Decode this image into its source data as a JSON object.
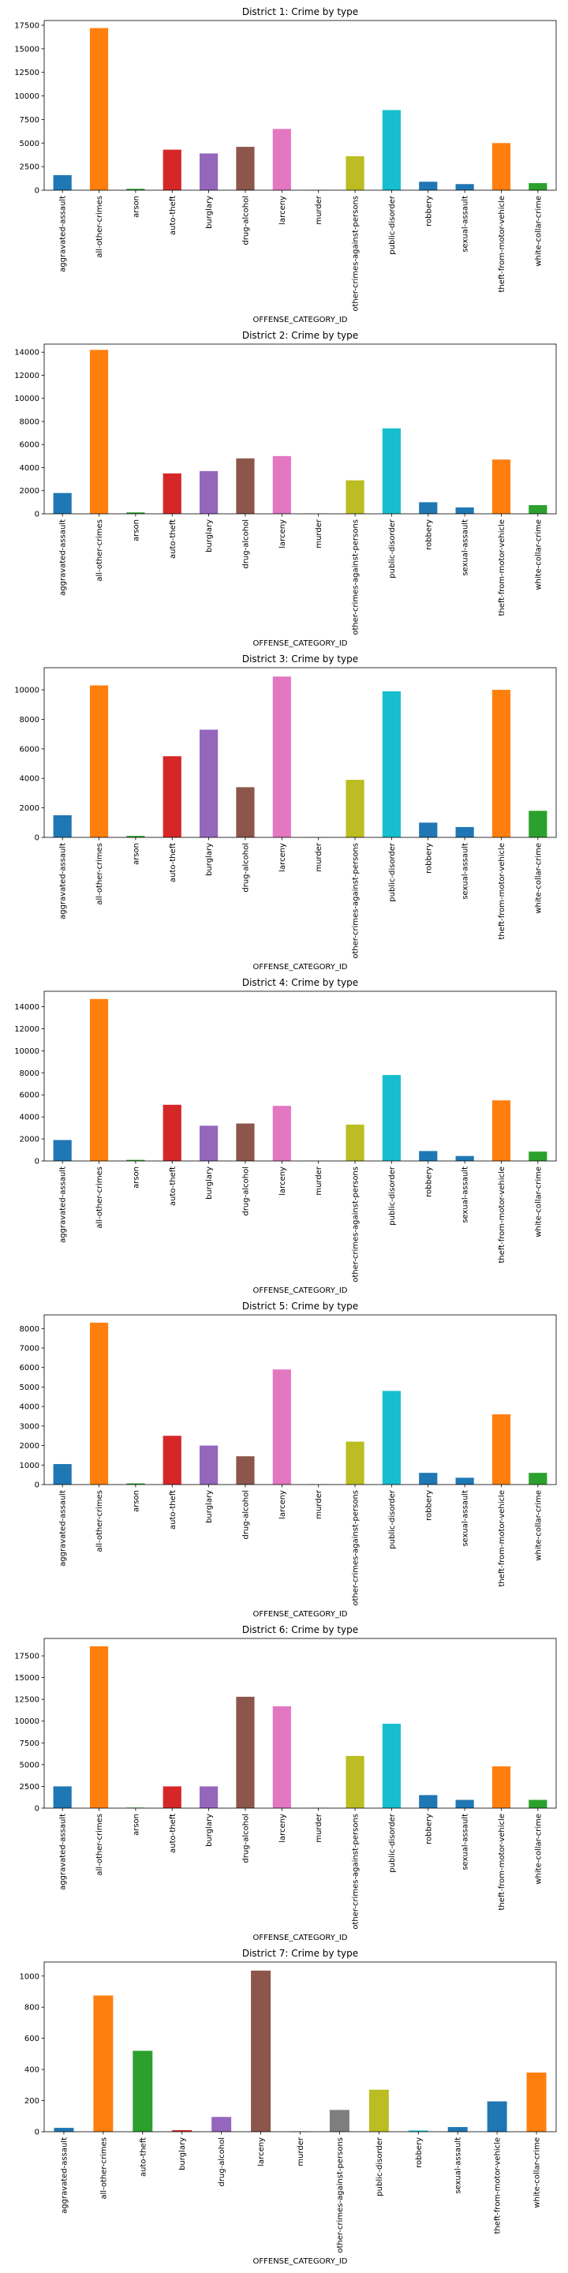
{
  "chart_data": [
    {
      "type": "bar",
      "title": "District 1: Crime by type",
      "xlabel": "OFFENSE_CATEGORY_ID",
      "ylim": [
        0,
        18000
      ],
      "yticks": [
        0,
        2500,
        5000,
        7500,
        10000,
        12500,
        15000,
        17500
      ],
      "categories": [
        "aggravated-assault",
        "all-other-crimes",
        "arson",
        "auto-theft",
        "burglary",
        "drug-alcohol",
        "larceny",
        "murder",
        "other-crimes-against-persons",
        "public-disorder",
        "robbery",
        "sexual-assault",
        "theft-from-motor-vehicle",
        "white-collar-crime"
      ],
      "values": [
        1600,
        17200,
        150,
        4300,
        3900,
        4600,
        6500,
        30,
        3600,
        8500,
        900,
        650,
        5000,
        750
      ],
      "colors": [
        "#1f77b4",
        "#ff7f0e",
        "#2ca02c",
        "#d62728",
        "#9467bd",
        "#8c564b",
        "#e377c2",
        "#7f7f7f",
        "#bcbd22",
        "#17becf",
        "#1f77b4",
        "#1f77b4",
        "#ff7f0e",
        "#2ca02c"
      ]
    },
    {
      "type": "bar",
      "title": "District 2: Crime by type",
      "xlabel": "OFFENSE_CATEGORY_ID",
      "ylim": [
        0,
        14700
      ],
      "yticks": [
        0,
        2000,
        4000,
        6000,
        8000,
        10000,
        12000,
        14000
      ],
      "categories": [
        "aggravated-assault",
        "all-other-crimes",
        "arson",
        "auto-theft",
        "burglary",
        "drug-alcohol",
        "larceny",
        "murder",
        "other-crimes-against-persons",
        "public-disorder",
        "robbery",
        "sexual-assault",
        "theft-from-motor-vehicle",
        "white-collar-crime"
      ],
      "values": [
        1800,
        14200,
        120,
        3500,
        3700,
        4800,
        5000,
        30,
        2900,
        7400,
        1000,
        550,
        4700,
        750
      ],
      "colors": [
        "#1f77b4",
        "#ff7f0e",
        "#2ca02c",
        "#d62728",
        "#9467bd",
        "#8c564b",
        "#e377c2",
        "#7f7f7f",
        "#bcbd22",
        "#17becf",
        "#1f77b4",
        "#1f77b4",
        "#ff7f0e",
        "#2ca02c"
      ]
    },
    {
      "type": "bar",
      "title": "District 3: Crime by type",
      "xlabel": "OFFENSE_CATEGORY_ID",
      "ylim": [
        0,
        11500
      ],
      "yticks": [
        0,
        2000,
        4000,
        6000,
        8000,
        10000
      ],
      "categories": [
        "aggravated-assault",
        "all-other-crimes",
        "arson",
        "auto-theft",
        "burglary",
        "drug-alcohol",
        "larceny",
        "murder",
        "other-crimes-against-persons",
        "public-disorder",
        "robbery",
        "sexual-assault",
        "theft-from-motor-vehicle",
        "white-collar-crime"
      ],
      "values": [
        1500,
        10300,
        100,
        5500,
        7300,
        3400,
        10900,
        20,
        3900,
        9900,
        1000,
        700,
        10000,
        1800
      ],
      "colors": [
        "#1f77b4",
        "#ff7f0e",
        "#2ca02c",
        "#d62728",
        "#9467bd",
        "#8c564b",
        "#e377c2",
        "#7f7f7f",
        "#bcbd22",
        "#17becf",
        "#1f77b4",
        "#1f77b4",
        "#ff7f0e",
        "#2ca02c"
      ]
    },
    {
      "type": "bar",
      "title": "District 4: Crime by type",
      "xlabel": "OFFENSE_CATEGORY_ID",
      "ylim": [
        0,
        15400
      ],
      "yticks": [
        0,
        2000,
        4000,
        6000,
        8000,
        10000,
        12000,
        14000
      ],
      "categories": [
        "aggravated-assault",
        "all-other-crimes",
        "arson",
        "auto-theft",
        "burglary",
        "drug-alcohol",
        "larceny",
        "murder",
        "other-crimes-against-persons",
        "public-disorder",
        "robbery",
        "sexual-assault",
        "theft-from-motor-vehicle",
        "white-collar-crime"
      ],
      "values": [
        1900,
        14700,
        100,
        5100,
        3200,
        3400,
        5000,
        20,
        3300,
        7800,
        900,
        450,
        5500,
        850
      ],
      "colors": [
        "#1f77b4",
        "#ff7f0e",
        "#2ca02c",
        "#d62728",
        "#9467bd",
        "#8c564b",
        "#e377c2",
        "#7f7f7f",
        "#bcbd22",
        "#17becf",
        "#1f77b4",
        "#1f77b4",
        "#ff7f0e",
        "#2ca02c"
      ]
    },
    {
      "type": "bar",
      "title": "District 5: Crime by type",
      "xlabel": "OFFENSE_CATEGORY_ID",
      "ylim": [
        0,
        8700
      ],
      "yticks": [
        0,
        1000,
        2000,
        3000,
        4000,
        5000,
        6000,
        7000,
        8000
      ],
      "categories": [
        "aggravated-assault",
        "all-other-crimes",
        "arson",
        "auto-theft",
        "burglary",
        "drug-alcohol",
        "larceny",
        "murder",
        "other-crimes-against-persons",
        "public-disorder",
        "robbery",
        "sexual-assault",
        "theft-from-motor-vehicle",
        "white-collar-crime"
      ],
      "values": [
        1050,
        8300,
        60,
        2500,
        2000,
        1450,
        5900,
        20,
        2200,
        4800,
        600,
        350,
        3600,
        600
      ],
      "colors": [
        "#1f77b4",
        "#ff7f0e",
        "#2ca02c",
        "#d62728",
        "#9467bd",
        "#8c564b",
        "#e377c2",
        "#7f7f7f",
        "#bcbd22",
        "#17becf",
        "#1f77b4",
        "#1f77b4",
        "#ff7f0e",
        "#2ca02c"
      ]
    },
    {
      "type": "bar",
      "title": "District 6: Crime by type",
      "xlabel": "OFFENSE_CATEGORY_ID",
      "ylim": [
        0,
        19500
      ],
      "yticks": [
        0,
        2500,
        5000,
        7500,
        10000,
        12500,
        15000,
        17500
      ],
      "categories": [
        "aggravated-assault",
        "all-other-crimes",
        "arson",
        "auto-theft",
        "burglary",
        "drug-alcohol",
        "larceny",
        "murder",
        "other-crimes-against-persons",
        "public-disorder",
        "robbery",
        "sexual-assault",
        "theft-from-motor-vehicle",
        "white-collar-crime"
      ],
      "values": [
        2500,
        18600,
        60,
        2500,
        2500,
        12800,
        11700,
        30,
        6000,
        9700,
        1500,
        950,
        4800,
        950
      ],
      "colors": [
        "#1f77b4",
        "#ff7f0e",
        "#2ca02c",
        "#d62728",
        "#9467bd",
        "#8c564b",
        "#e377c2",
        "#7f7f7f",
        "#bcbd22",
        "#17becf",
        "#1f77b4",
        "#1f77b4",
        "#ff7f0e",
        "#2ca02c"
      ]
    },
    {
      "type": "bar",
      "title": "District 7: Crime by type",
      "xlabel": "OFFENSE_CATEGORY_ID",
      "ylim": [
        0,
        1090
      ],
      "yticks": [
        0,
        200,
        400,
        600,
        800,
        1000
      ],
      "categories": [
        "aggravated-assault",
        "all-other-crimes",
        "auto-theft",
        "burglary",
        "drug-alcohol",
        "larceny",
        "murder",
        "other-crimes-against-persons",
        "public-disorder",
        "robbery",
        "sexual-assault",
        "theft-from-motor-vehicle",
        "white-collar-crime"
      ],
      "values": [
        25,
        875,
        520,
        10,
        95,
        1035,
        3,
        140,
        270,
        8,
        30,
        195,
        380
      ],
      "colors": [
        "#1f77b4",
        "#ff7f0e",
        "#2ca02c",
        "#d62728",
        "#9467bd",
        "#8c564b",
        "#e377c2",
        "#7f7f7f",
        "#bcbd22",
        "#17becf",
        "#1f77b4",
        "#1f77b4",
        "#ff7f0e"
      ]
    }
  ]
}
